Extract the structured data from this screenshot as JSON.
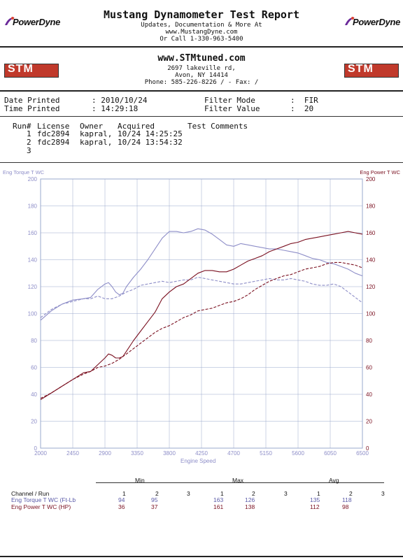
{
  "header": {
    "title": "Mustang Dynamometer Test Report",
    "line1": "Updates, Documentation & More At",
    "line2": "www.MustangDyne.com",
    "line3": "Or Call 1-330-963-5400",
    "logo_text": "PowerDyne"
  },
  "shop": {
    "logo_text": "STM",
    "website": "www.STMtuned.com",
    "address1": "2697 lakeville rd,",
    "address2": "Avon, NY  14414",
    "phone": "Phone: 585-226-8226 /  - Fax:  /"
  },
  "report_info": {
    "date_label": "Date Printed",
    "date_value": ": 2010/10/24",
    "time_label": "Time Printed",
    "time_value": ": 14:29:18",
    "filter_mode_label": "Filter Mode",
    "filter_mode_value": ":  FIR",
    "filter_value_label": "Filter Value",
    "filter_value_value": ":  20"
  },
  "runs": {
    "headers": [
      "Run#",
      "License",
      "Owner",
      "Acquired",
      "Test Comments"
    ],
    "rows": [
      {
        "run": "1",
        "license": "fdc2894",
        "owner": "kapral,",
        "acquired": "10/24 14:25:25"
      },
      {
        "run": "2",
        "license": "fdc2894",
        "owner": "kapral,",
        "acquired": "10/24 13:54:32"
      },
      {
        "run": "3",
        "license": "",
        "owner": "",
        "acquired": ""
      }
    ]
  },
  "colors": {
    "torque": "#8e8ec8",
    "power": "#7a1020",
    "grid": "#9aa8cc"
  },
  "chart_data": {
    "type": "line",
    "left_axis_title": "Eng Torque T WC",
    "right_axis_title": "Eng Power T WC",
    "xlabel": "Engine Speed",
    "xlim": [
      2000,
      6500
    ],
    "ylim": [
      0,
      200
    ],
    "x_ticks": [
      2000,
      2450,
      2900,
      3350,
      3800,
      4250,
      4700,
      5150,
      5600,
      6050,
      6500
    ],
    "y_ticks": [
      0,
      20,
      40,
      60,
      80,
      100,
      120,
      140,
      160,
      180,
      200
    ],
    "grid": true,
    "series": [
      {
        "name": "Eng Torque T WC",
        "run": 1,
        "style": "solid",
        "color": "#8e8ec8",
        "points": [
          [
            2000,
            95
          ],
          [
            2150,
            102
          ],
          [
            2300,
            107
          ],
          [
            2450,
            110
          ],
          [
            2600,
            111
          ],
          [
            2700,
            112
          ],
          [
            2800,
            118
          ],
          [
            2900,
            122
          ],
          [
            2950,
            123
          ],
          [
            3000,
            120
          ],
          [
            3050,
            116
          ],
          [
            3100,
            114
          ],
          [
            3150,
            115
          ],
          [
            3200,
            120
          ],
          [
            3300,
            127
          ],
          [
            3400,
            133
          ],
          [
            3500,
            140
          ],
          [
            3600,
            148
          ],
          [
            3700,
            156
          ],
          [
            3800,
            161
          ],
          [
            3900,
            161
          ],
          [
            4000,
            160
          ],
          [
            4100,
            161
          ],
          [
            4200,
            163
          ],
          [
            4300,
            162
          ],
          [
            4400,
            159
          ],
          [
            4500,
            155
          ],
          [
            4600,
            151
          ],
          [
            4700,
            150
          ],
          [
            4800,
            152
          ],
          [
            4900,
            151
          ],
          [
            5000,
            150
          ],
          [
            5100,
            149
          ],
          [
            5200,
            148
          ],
          [
            5300,
            148
          ],
          [
            5400,
            147
          ],
          [
            5500,
            146
          ],
          [
            5600,
            145
          ],
          [
            5700,
            143
          ],
          [
            5800,
            141
          ],
          [
            5900,
            140
          ],
          [
            6000,
            138
          ],
          [
            6100,
            137
          ],
          [
            6200,
            135
          ],
          [
            6300,
            133
          ],
          [
            6400,
            130
          ],
          [
            6500,
            128
          ]
        ]
      },
      {
        "name": "Eng Torque T WC",
        "run": 2,
        "style": "dashed",
        "color": "#8e8ec8",
        "points": [
          [
            2000,
            97
          ],
          [
            2150,
            103
          ],
          [
            2300,
            107
          ],
          [
            2450,
            109
          ],
          [
            2600,
            111
          ],
          [
            2700,
            111
          ],
          [
            2800,
            113
          ],
          [
            2900,
            111
          ],
          [
            3000,
            111
          ],
          [
            3100,
            113
          ],
          [
            3200,
            116
          ],
          [
            3300,
            118
          ],
          [
            3400,
            121
          ],
          [
            3500,
            122
          ],
          [
            3600,
            123
          ],
          [
            3700,
            124
          ],
          [
            3800,
            123
          ],
          [
            3900,
            124
          ],
          [
            4000,
            125
          ],
          [
            4100,
            125
          ],
          [
            4200,
            127
          ],
          [
            4300,
            126
          ],
          [
            4400,
            125
          ],
          [
            4500,
            124
          ],
          [
            4600,
            123
          ],
          [
            4700,
            122
          ],
          [
            4800,
            122
          ],
          [
            4900,
            123
          ],
          [
            5000,
            124
          ],
          [
            5100,
            125
          ],
          [
            5200,
            126
          ],
          [
            5300,
            125
          ],
          [
            5400,
            125
          ],
          [
            5500,
            126
          ],
          [
            5600,
            125
          ],
          [
            5700,
            124
          ],
          [
            5800,
            122
          ],
          [
            5900,
            121
          ],
          [
            6000,
            121
          ],
          [
            6100,
            122
          ],
          [
            6200,
            120
          ],
          [
            6300,
            116
          ],
          [
            6400,
            112
          ],
          [
            6500,
            108
          ]
        ]
      },
      {
        "name": "Eng Power T WC",
        "run": 1,
        "style": "solid",
        "color": "#7a1020",
        "points": [
          [
            2000,
            36
          ],
          [
            2150,
            41
          ],
          [
            2300,
            46
          ],
          [
            2450,
            51
          ],
          [
            2600,
            56
          ],
          [
            2700,
            57
          ],
          [
            2800,
            62
          ],
          [
            2900,
            67
          ],
          [
            2950,
            70
          ],
          [
            3000,
            69
          ],
          [
            3050,
            67
          ],
          [
            3100,
            67
          ],
          [
            3150,
            68
          ],
          [
            3200,
            72
          ],
          [
            3300,
            80
          ],
          [
            3400,
            87
          ],
          [
            3500,
            94
          ],
          [
            3600,
            101
          ],
          [
            3700,
            111
          ],
          [
            3800,
            116
          ],
          [
            3900,
            120
          ],
          [
            4000,
            122
          ],
          [
            4100,
            126
          ],
          [
            4200,
            130
          ],
          [
            4300,
            132
          ],
          [
            4400,
            132
          ],
          [
            4500,
            131
          ],
          [
            4600,
            131
          ],
          [
            4700,
            133
          ],
          [
            4800,
            136
          ],
          [
            4900,
            139
          ],
          [
            5000,
            141
          ],
          [
            5100,
            143
          ],
          [
            5200,
            146
          ],
          [
            5300,
            148
          ],
          [
            5400,
            150
          ],
          [
            5500,
            152
          ],
          [
            5600,
            153
          ],
          [
            5700,
            155
          ],
          [
            5800,
            156
          ],
          [
            5900,
            157
          ],
          [
            6000,
            158
          ],
          [
            6100,
            159
          ],
          [
            6200,
            160
          ],
          [
            6300,
            161
          ],
          [
            6400,
            160
          ],
          [
            6500,
            159
          ]
        ]
      },
      {
        "name": "Eng Power T WC",
        "run": 2,
        "style": "dashed",
        "color": "#7a1020",
        "points": [
          [
            2000,
            37
          ],
          [
            2150,
            41
          ],
          [
            2300,
            46
          ],
          [
            2450,
            51
          ],
          [
            2600,
            55
          ],
          [
            2700,
            57
          ],
          [
            2800,
            60
          ],
          [
            2900,
            61
          ],
          [
            3000,
            63
          ],
          [
            3100,
            66
          ],
          [
            3200,
            70
          ],
          [
            3300,
            74
          ],
          [
            3400,
            78
          ],
          [
            3500,
            82
          ],
          [
            3600,
            86
          ],
          [
            3700,
            89
          ],
          [
            3800,
            91
          ],
          [
            3900,
            94
          ],
          [
            4000,
            97
          ],
          [
            4100,
            99
          ],
          [
            4200,
            102
          ],
          [
            4300,
            103
          ],
          [
            4400,
            104
          ],
          [
            4500,
            106
          ],
          [
            4600,
            108
          ],
          [
            4700,
            109
          ],
          [
            4800,
            111
          ],
          [
            4900,
            114
          ],
          [
            5000,
            118
          ],
          [
            5100,
            121
          ],
          [
            5200,
            124
          ],
          [
            5300,
            126
          ],
          [
            5400,
            128
          ],
          [
            5500,
            129
          ],
          [
            5600,
            131
          ],
          [
            5700,
            133
          ],
          [
            5800,
            134
          ],
          [
            5900,
            135
          ],
          [
            6000,
            137
          ],
          [
            6100,
            138
          ],
          [
            6200,
            138
          ],
          [
            6300,
            137
          ],
          [
            6400,
            136
          ],
          [
            6500,
            134
          ]
        ]
      }
    ]
  },
  "stats": {
    "group_min": "Min",
    "group_max": "Max",
    "group_avg": "Avg",
    "channel_header": "Channel / Run",
    "run_numbers": [
      "1",
      "2",
      "3"
    ],
    "rows": [
      {
        "label": "Eng Torque T WC (Ft-Lb",
        "min": [
          "94",
          "95",
          ""
        ],
        "max": [
          "163",
          "126",
          ""
        ],
        "avg": [
          "135",
          "118",
          ""
        ]
      },
      {
        "label": "Eng Power T WC (HP)",
        "min": [
          "36",
          "37",
          ""
        ],
        "max": [
          "161",
          "138",
          ""
        ],
        "avg": [
          "112",
          "98",
          ""
        ]
      }
    ]
  }
}
